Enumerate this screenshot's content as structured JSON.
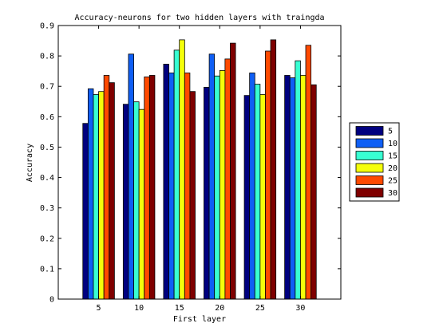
{
  "chart_data": {
    "type": "bar",
    "title": "Accuracy-neurons for two hidden layers with traingda",
    "xlabel": "First layer",
    "ylabel": "Accuracy",
    "categories": [
      "5",
      "10",
      "15",
      "20",
      "25",
      "30"
    ],
    "ylim": [
      0,
      0.9
    ],
    "yticks": [
      0,
      0.1,
      0.2,
      0.3,
      0.4,
      0.5,
      0.6,
      0.7,
      0.8,
      0.9
    ],
    "ytick_labels": [
      "0",
      "0.1",
      "0.2",
      "0.3",
      "0.4",
      "0.5",
      "0.6",
      "0.7",
      "0.8",
      "0.9"
    ],
    "grid": false,
    "legend_position": "right",
    "series": [
      {
        "name": "5",
        "color": "#00007f",
        "values": [
          0.578,
          0.641,
          0.773,
          0.697,
          0.67,
          0.736
        ]
      },
      {
        "name": "10",
        "color": "#0f5ff5",
        "values": [
          0.692,
          0.806,
          0.744,
          0.806,
          0.744,
          0.728
        ]
      },
      {
        "name": "15",
        "color": "#38ffd2",
        "values": [
          0.673,
          0.649,
          0.819,
          0.734,
          0.707,
          0.784
        ]
      },
      {
        "name": "20",
        "color": "#f5ff0a",
        "values": [
          0.683,
          0.624,
          0.853,
          0.752,
          0.673,
          0.736
        ]
      },
      {
        "name": "25",
        "color": "#ff4a00",
        "values": [
          0.736,
          0.731,
          0.744,
          0.79,
          0.816,
          0.835
        ]
      },
      {
        "name": "30",
        "color": "#7f0000",
        "values": [
          0.712,
          0.736,
          0.683,
          0.842,
          0.853,
          0.705
        ]
      }
    ]
  }
}
